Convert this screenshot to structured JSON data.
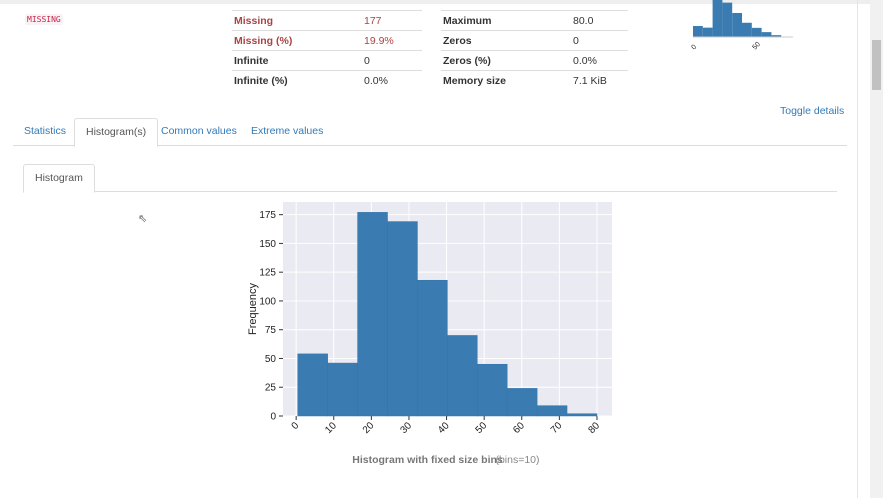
{
  "badge": "MISSING",
  "stats_left": [
    {
      "k": "Missing",
      "v": "177",
      "alert": true
    },
    {
      "k": "Missing (%)",
      "v": "19.9%",
      "alert": true
    },
    {
      "k": "Infinite",
      "v": "0"
    },
    {
      "k": "Infinite (%)",
      "v": "0.0%"
    }
  ],
  "stats_right": [
    {
      "k": "Maximum",
      "v": "80.0"
    },
    {
      "k": "Zeros",
      "v": "0"
    },
    {
      "k": "Zeros (%)",
      "v": "0.0%"
    },
    {
      "k": "Memory size",
      "v": "7.1 KiB"
    }
  ],
  "toggle": "Toggle details",
  "tabs": [
    "Statistics",
    "Histogram(s)",
    "Common values",
    "Extreme values"
  ],
  "subtab": "Histogram",
  "colors": {
    "bar": "#3a7cb2",
    "plot_bg": "#eaeaf2",
    "link": "#337ab7",
    "alert": "#a94442"
  },
  "mini": {
    "ticks": [
      "0",
      "50"
    ]
  },
  "chart_data": {
    "type": "bar",
    "bin_edges": [
      0.42,
      8.378,
      16.336,
      24.294,
      32.252,
      40.21,
      48.168,
      56.126,
      64.084,
      72.042,
      80.0
    ],
    "values": [
      54,
      46,
      177,
      169,
      118,
      70,
      45,
      24,
      9,
      2
    ],
    "ylabel": "Frequency",
    "xticks": [
      "0",
      "10",
      "20",
      "30",
      "40",
      "50",
      "60",
      "70",
      "80"
    ],
    "yticks": [
      "0",
      "25",
      "50",
      "75",
      "100",
      "125",
      "150",
      "175"
    ],
    "title": "Histogram with fixed size bins",
    "title_suffix": "(bins=10)",
    "xlim": [
      -3.5,
      84
    ],
    "ylim": [
      0,
      186
    ],
    "grid": true
  }
}
